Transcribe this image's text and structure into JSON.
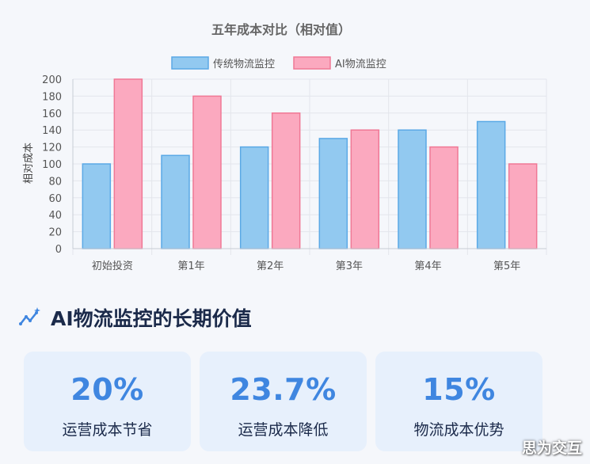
{
  "chart_data": {
    "type": "bar",
    "title": "五年成本对比（相对值）",
    "xlabel": "",
    "ylabel": "相对成本",
    "categories": [
      "初始投资",
      "第1年",
      "第2年",
      "第3年",
      "第4年",
      "第5年"
    ],
    "series": [
      {
        "name": "传统物流监控",
        "values": [
          100,
          110,
          120,
          130,
          140,
          150
        ],
        "color": "#92c9f0",
        "stroke": "#5ba9e6"
      },
      {
        "name": "AI物流监控",
        "values": [
          200,
          180,
          160,
          140,
          120,
          100
        ],
        "color": "#fba9bf",
        "stroke": "#f07895"
      }
    ],
    "ylim": [
      0,
      200
    ],
    "yticks": [
      0,
      20,
      40,
      60,
      80,
      100,
      120,
      140,
      160,
      180,
      200
    ],
    "grid": true,
    "legend_position": "top"
  },
  "section": {
    "title": "AI物流监控的长期价值",
    "icon": "trend-chart-icon"
  },
  "stats": [
    {
      "value": "20%",
      "label": "运营成本节省"
    },
    {
      "value": "23.7%",
      "label": "运营成本降低"
    },
    {
      "value": "15%",
      "label": "物流成本优势"
    }
  ],
  "watermark": "思为交互",
  "colors": {
    "accent": "#3f86e0",
    "card_bg": "#e7f0fc",
    "page_bg": "#f5f7fb",
    "heading": "#1b2a4a"
  }
}
